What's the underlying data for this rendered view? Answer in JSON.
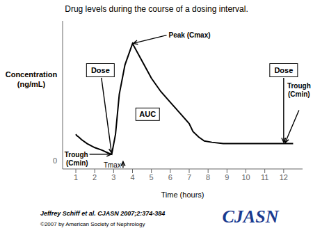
{
  "chart_data": {
    "type": "line",
    "title": "Drug levels during the course of a dosing interval.",
    "xlabel": "Time (hours)",
    "ylabel": "Concentration\n(ng/mL)",
    "x": [
      1.0,
      1.05,
      1.15,
      1.3,
      1.6,
      2.0,
      2.4,
      2.7,
      2.9,
      3.1,
      3.3,
      3.6,
      4.0,
      4.5,
      5.0,
      5.5,
      6.0,
      6.5,
      7.0,
      7.2,
      7.5,
      7.8,
      8.2,
      8.8,
      9.3,
      9.8,
      10.3,
      10.8,
      11.2,
      11.6,
      12.0,
      12.5
    ],
    "values": [
      0.2,
      0.19,
      0.18,
      0.16,
      0.13,
      0.1,
      0.08,
      0.06,
      0.05,
      0.2,
      0.5,
      0.72,
      0.88,
      0.75,
      0.62,
      0.52,
      0.44,
      0.36,
      0.28,
      0.22,
      0.18,
      0.15,
      0.14,
      0.13,
      0.13,
      0.13,
      0.13,
      0.13,
      0.13,
      0.13,
      0.13,
      0.13
    ],
    "color": "#000000",
    "xlim": [
      0.3,
      13.0
    ],
    "xticks": [
      1,
      2,
      3,
      4,
      5,
      6,
      7,
      8,
      9,
      10,
      11,
      12
    ],
    "ylim": [
      -0.06,
      1.05
    ],
    "yticks": [
      0
    ],
    "grid": false,
    "annotations": [
      {
        "text": "Peak (Cmax)",
        "x": 4.0,
        "y": 0.88
      },
      {
        "text": "Trough\n(Cmin)",
        "x": 2.9,
        "y": 0.05
      },
      {
        "text": "Trough\n(Cmin)",
        "x": 12.0,
        "y": 0.13
      },
      {
        "text": "AUC",
        "x": 4.8,
        "y": 0.35
      },
      {
        "text": "Dose",
        "x": 2.3,
        "y": 0.68
      },
      {
        "text": "Dose",
        "x": 12.0,
        "y": 0.68
      },
      {
        "text": "Tmax",
        "x": 3.5,
        "y": 0
      },
      {
        "text": "Jeffrey Schiff et al. CJASN 2007;2:374-384"
      },
      {
        "text": "©2007 by American Society of Nephrology"
      },
      {
        "text": "CJASN",
        "color": "#1a3a8f"
      }
    ]
  }
}
